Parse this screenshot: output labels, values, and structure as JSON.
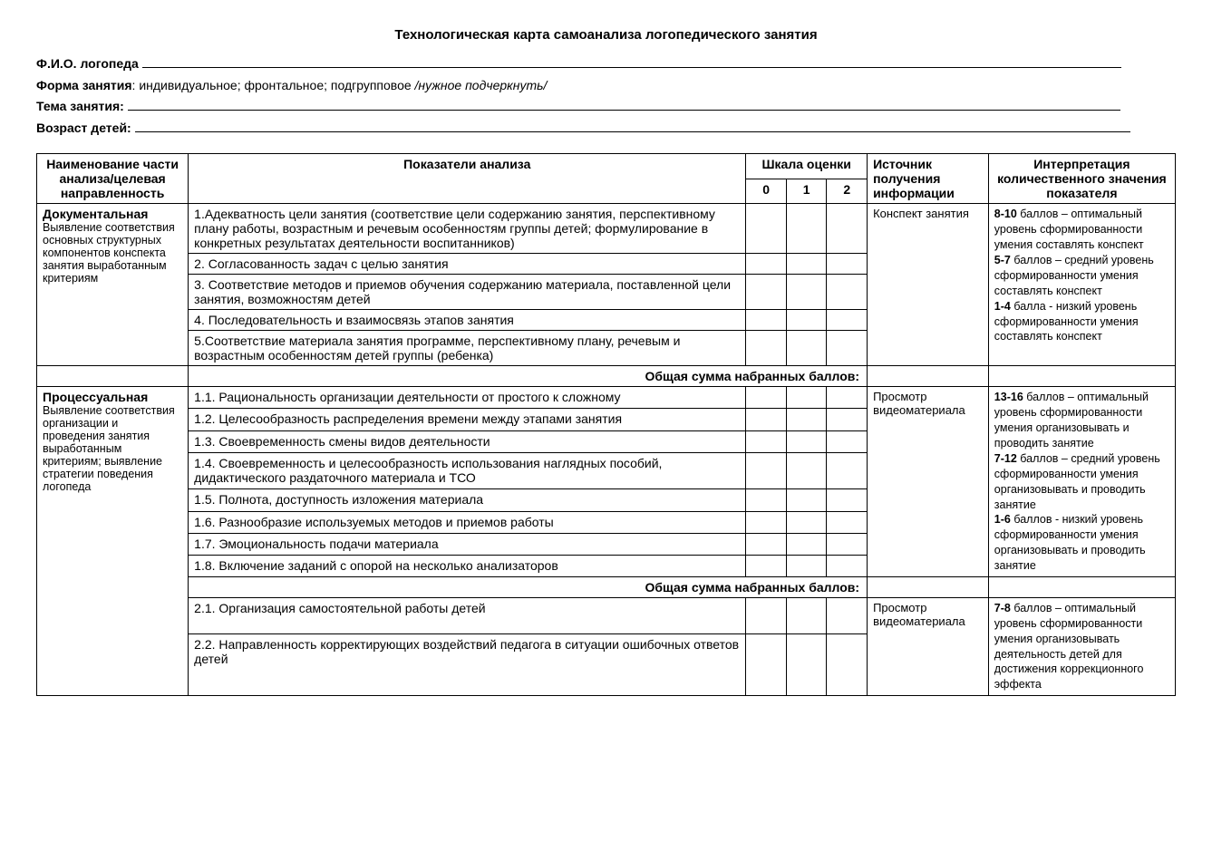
{
  "title": "Технологическая карта  самоанализа логопедического занятия",
  "form": {
    "fio_label": "Ф.И.О. логопеда",
    "form_label": "Форма занятия",
    "form_value": ": индивидуальное; фронтальное; подгрупповое   ",
    "form_hint": "/нужное подчеркнуть/",
    "topic_label": "Тема занятия:",
    "age_label": "Возраст детей:"
  },
  "headers": {
    "name": "Наименование части анализа/целевая направленность",
    "indicators": "Показатели анализа",
    "scale": "Шкала оценки",
    "s0": "0",
    "s1": "1",
    "s2": "2",
    "source": "Источник получения информации",
    "interp": "Интерпретация количественного значения показателя"
  },
  "sum_label": "Общая сумма  набранных баллов:",
  "sections": [
    {
      "name_hdr": "Документальная",
      "name_desc": "Выявление соответствия основных структурных компонентов конспекта занятия выработанным критериям",
      "source": "Конспект занятия",
      "indicators": [
        "1.Адекватность  цели занятия (соответствие цели содержанию занятия, перспективному плану работы, возрастным и речевым особенностям группы детей; формулирование в конкретных результатах деятельности воспитанников)",
        "2. Согласованность задач  с целью занятия",
        "3. Соответствие методов и приемов обучения содержанию материала, поставленной цели занятия, возможностям детей",
        "4. Последовательность и взаимосвязь этапов занятия",
        "5.Соответствие материала занятия программе, перспективному плану, речевым и возрастным особенностям  детей  группы (ребенка)"
      ],
      "interp_parts": [
        {
          "b": "8-10",
          "t": "  баллов – оптимальный уровень сформированности умения составлять конспект"
        },
        {
          "b": "5-7",
          "t": " баллов – средний уровень сформированности умения составлять конспект"
        },
        {
          "b": "1-4",
          "t": " балла -  низкий уровень сформированности умения составлять конспект"
        }
      ]
    },
    {
      "name_hdr": "Процессуальная",
      "name_desc": "Выявление соответствия организации и проведения занятия выработанным критериям; выявление стратегии поведения  логопеда",
      "source": "Просмотр видеоматериала",
      "indicators": [
        "1.1. Рациональность организации деятельности от простого к сложному",
        "1.2. Целесообразность распределения времени между этапами занятия",
        "1.3. Своевременность смены видов деятельности",
        "1.4. Своевременность и целесообразность использования наглядных пособий, дидактического раздаточного материала и ТСО",
        "1.5. Полнота, доступность изложения материала",
        "1.6. Разнообразие используемых методов и приемов работы",
        "1.7. Эмоциональность подачи материала",
        "1.8. Включение заданий с опорой на несколько анализаторов"
      ],
      "interp_parts": [
        {
          "b": "13-16",
          "t": "  баллов – оптимальный  уровень сформированности умения организовывать и проводить занятие"
        },
        {
          "b": "7-12",
          "t": "  баллов – средний уровень  сформированности умения организовывать и проводить занятие"
        },
        {
          "b": "1-6",
          "t": " баллов -  низкий уровень сформированности умения организовывать и проводить занятие"
        }
      ]
    },
    {
      "name_hdr": "",
      "name_desc": "",
      "source": "Просмотр видеоматериала",
      "indicators": [
        "2.1. Организация самостоятельной работы детей",
        "2.2. Направленность  корректирующих воздействий педагога в ситуации  ошибочных ответов детей"
      ],
      "interp_parts": [
        {
          "b": "7-8",
          "t": "  баллов – оптимальный уровень сформированности умения организовывать деятельность детей для достижения коррекционного эффекта"
        }
      ]
    }
  ]
}
